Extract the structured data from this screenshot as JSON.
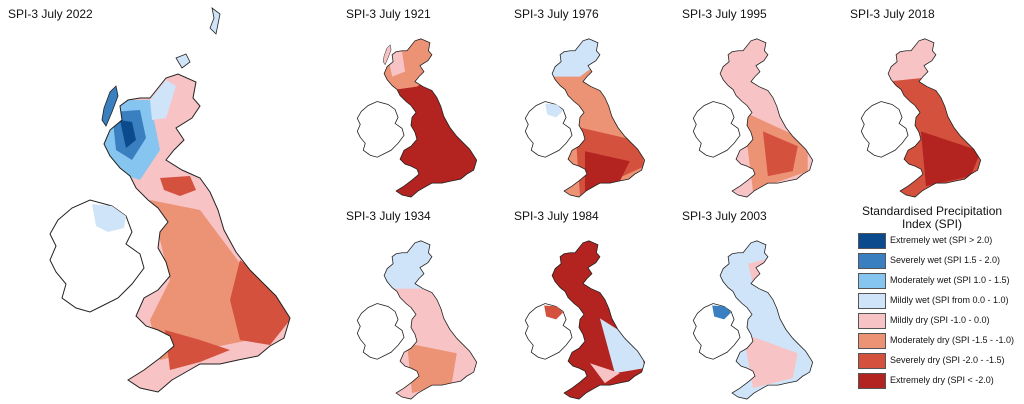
{
  "main_map": {
    "title": "SPI-3 July 2022"
  },
  "small_maps": [
    {
      "title": "SPI-3 July 1921"
    },
    {
      "title": "SPI-3 July 1976"
    },
    {
      "title": "SPI-3 July 1995"
    },
    {
      "title": "SPI-3 July 2018"
    },
    {
      "title": "SPI-3 July 1934"
    },
    {
      "title": "SPI-3 July 1984"
    },
    {
      "title": "SPI-3 July 2003"
    }
  ],
  "legend": {
    "title_line1": "Standardised Precipitation",
    "title_line2": "Index (SPI)",
    "items": [
      {
        "label": "Extremely wet (SPI > 2.0)",
        "color": "#0b4a8c"
      },
      {
        "label": "Severely wet (SPI 1.5 - 2.0)",
        "color": "#3a7fc0"
      },
      {
        "label": "Moderately wet (SPI  1.0 - 1.5)",
        "color": "#86c5ef"
      },
      {
        "label": "Mildly wet (SPI from 0.0 - 1.0)",
        "color": "#cfe4f8"
      },
      {
        "label": "Mildly dry (SPI  -1.0 - 0.0)",
        "color": "#f8c3c5"
      },
      {
        "label": "Moderately dry (SPI  -1.5 - -1.0)",
        "color": "#ec9275"
      },
      {
        "label": "Severely dry (SPI  -2.0 - -1.5)",
        "color": "#d4513e"
      },
      {
        "label": "Extremely dry (SPI < -2.0)",
        "color": "#b3231f"
      }
    ]
  }
}
